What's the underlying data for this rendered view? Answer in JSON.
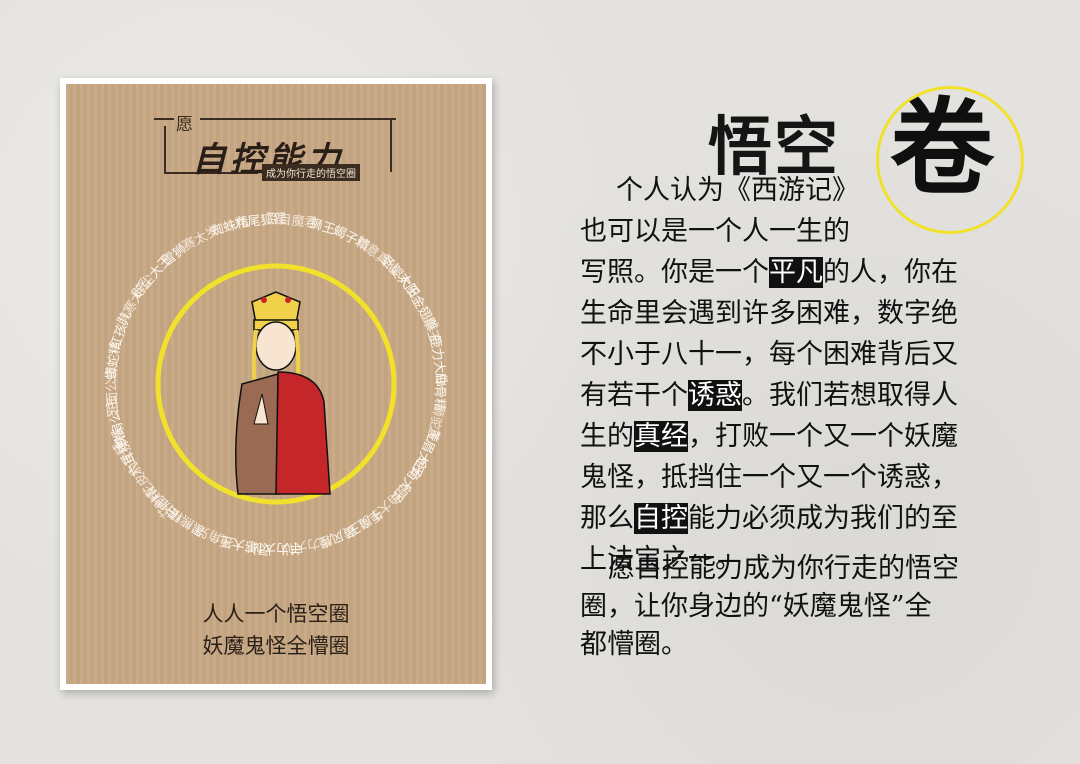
{
  "card": {
    "seal_small": "愿",
    "seal_title": "自控能力",
    "seal_subtitle": "成为你行走的悟空圈",
    "ring_names": [
      "辟寒大王",
      "辟尘大王",
      "雪狮",
      "赛太岁",
      "蜘蛛精",
      "九尾狐狸",
      "百目魔君",
      "狮王",
      "蝎子精",
      "如意真仙",
      "圣婴大王",
      "太阳金翅雕",
      "象王",
      "鹿力大仙",
      "白骨精",
      "狮驼王",
      "黄眉大王",
      "金角大王",
      "银角大王",
      "牛魔王",
      "黄风怪",
      "虎力大仙",
      "羊力大仙",
      "灵感大王",
      "独角兕",
      "黑熊精",
      "白鹿精",
      "艾叶花皮豹子精",
      "六耳猕猴",
      "铁扇公主",
      "玉面公主",
      "蟒蛇精",
      "红孩儿"
    ],
    "caption_line1": "人人一个悟空圈",
    "caption_line2": "妖魔鬼怪全懵圈"
  },
  "title": "悟空",
  "title_badge": "卷",
  "lines": [
    {
      "a": "个人认为《西游记》",
      "h": "",
      "b": ""
    },
    {
      "a": "也可以是一个人一生的",
      "h": "",
      "b": ""
    },
    {
      "a": "写照。你是一个",
      "h": "平凡",
      "b": "的人，你在"
    },
    {
      "a": "生命里会遇到许多困难，数字绝",
      "h": "",
      "b": ""
    },
    {
      "a": "不小于八十一，每个困难背后又",
      "h": "",
      "b": ""
    },
    {
      "a": "有若干个",
      "h": "诱惑",
      "b": "。我们若想取得人"
    },
    {
      "a": "生的",
      "h": "真经",
      "b": "，打败一个又一个妖魔"
    },
    {
      "a": "鬼怪，抵挡住一个又一个诱惑，",
      "h": "",
      "b": ""
    },
    {
      "a": "那么",
      "h": "自控",
      "b": "能力必须成为我们的至"
    },
    {
      "a": "上法宝之一。",
      "h": "",
      "b": ""
    }
  ],
  "closing": [
    "愿自控能力成为你行走的悟空",
    "圈，让你身边的“妖魔鬼怪”全",
    "都懵圈。"
  ],
  "colors": {
    "ring": "#f1e12a",
    "robe": "#c4262a",
    "card_bg": "#c7a783"
  }
}
